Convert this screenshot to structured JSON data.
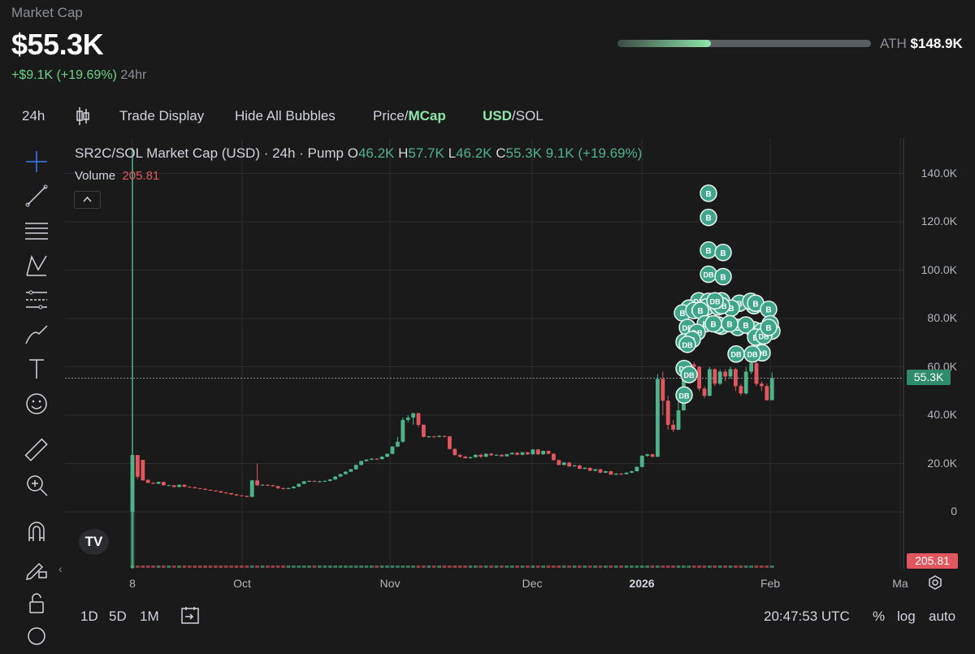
{
  "header": {
    "label": "Market Cap",
    "value": "$55.3K",
    "change": "+$9.1K (+19.69%)",
    "period": "24hr",
    "ath_label": "ATH",
    "ath_value": "$148.9K",
    "ath_progress": 0.37
  },
  "toolbar": {
    "interval": "24h",
    "trade_display": "Trade Display",
    "hide_bubbles": "Hide All Bubbles",
    "price_label": "Price/",
    "mcap_label": "MCap",
    "usd_label": "USD",
    "sol_label": "/SOL"
  },
  "legend": {
    "title": "SR2C/SOL Market Cap (USD) · 24h · Pump",
    "o_key": "O",
    "o_val": "46.2K",
    "h_key": "H",
    "h_val": "57.7K",
    "l_key": "L",
    "l_val": "46.2K",
    "c_key": "C",
    "c_val": "55.3K",
    "change": "9.1K (+19.69%)",
    "volume_label": "Volume",
    "volume_value": "205.81"
  },
  "bottom_bar": {
    "r1": "1D",
    "r2": "5D",
    "r3": "1M",
    "time": "20:47:53 UTC",
    "pct": "%",
    "log": "log",
    "auto": "auto"
  },
  "tools": [
    "crosshair-icon",
    "trend-line-icon",
    "fib-icon",
    "pattern-icon",
    "projection-icon",
    "brush-icon",
    "text-icon",
    "emoji-icon",
    "ruler-icon",
    "zoom-icon",
    "magnet-icon",
    "lock-pencil-icon",
    "lock-icon",
    "eye-icon"
  ],
  "colors": {
    "up": "#4fb38a",
    "down": "#e0575f",
    "accent": "#8fe6a9",
    "bubble": "#3fa58a"
  },
  "chart_data": {
    "type": "candlestick",
    "title": "SR2C/SOL Market Cap (USD) · 24h · Pump",
    "y_ticks": [
      "140.0K",
      "120.0K",
      "100.0K",
      "80.0K",
      "60.0K",
      "40.0K",
      "20.0K",
      "0"
    ],
    "ylim": [
      0,
      140000
    ],
    "x_ticks": [
      "8",
      "Oct",
      "Nov",
      "Dec",
      "2026",
      "Feb",
      "Ma"
    ],
    "last_price_label": "55.3K",
    "last_volume_label": "205.81",
    "candles": [
      [
        0,
        0,
        23500,
        23500,
        0
      ],
      [
        1,
        23500,
        14500,
        23500,
        13500
      ],
      [
        2,
        21500,
        13000,
        21500,
        13000
      ],
      [
        3,
        13200,
        12000,
        13500,
        11800
      ],
      [
        4,
        12000,
        11600,
        12300,
        11400
      ],
      [
        5,
        11600,
        12400,
        12500,
        11500
      ],
      [
        6,
        12400,
        11000,
        12400,
        10800
      ],
      [
        7,
        11000,
        11000,
        11200,
        10800
      ],
      [
        8,
        11000,
        10300,
        11000,
        10000
      ],
      [
        9,
        10300,
        11200,
        11200,
        10100
      ],
      [
        10,
        11200,
        10400,
        11300,
        10200
      ],
      [
        11,
        10400,
        10200,
        10500,
        10000
      ],
      [
        12,
        10200,
        9800,
        10300,
        9600
      ],
      [
        13,
        9800,
        9500,
        9900,
        9400
      ],
      [
        14,
        9500,
        9100,
        9600,
        9000
      ],
      [
        15,
        9100,
        8800,
        9200,
        8700
      ],
      [
        16,
        8800,
        8500,
        8900,
        8400
      ],
      [
        17,
        8500,
        8000,
        8600,
        7800
      ],
      [
        18,
        8000,
        7700,
        8100,
        7500
      ],
      [
        19,
        7700,
        7200,
        7800,
        7000
      ],
      [
        20,
        7200,
        6800,
        7400,
        6600
      ],
      [
        21,
        6800,
        6600,
        6900,
        6400
      ],
      [
        22,
        6600,
        6200,
        6700,
        6000
      ],
      [
        23,
        6200,
        13000,
        13200,
        6000
      ],
      [
        24,
        13000,
        11000,
        20000,
        10600
      ],
      [
        25,
        11000,
        11200,
        11400,
        10800
      ],
      [
        26,
        11200,
        11000,
        11400,
        10600
      ],
      [
        27,
        11000,
        10600,
        11200,
        10400
      ],
      [
        28,
        10600,
        9800,
        10800,
        9500
      ],
      [
        29,
        9800,
        9500,
        10000,
        9300
      ],
      [
        30,
        9500,
        9800,
        10000,
        9400
      ],
      [
        31,
        9800,
        10400,
        10600,
        9600
      ],
      [
        32,
        10400,
        11600,
        11800,
        10200
      ],
      [
        33,
        11600,
        12600,
        12800,
        11400
      ],
      [
        34,
        12600,
        12800,
        13000,
        12400
      ],
      [
        35,
        12800,
        12600,
        13000,
        12400
      ],
      [
        36,
        12600,
        12600,
        12900,
        12300
      ],
      [
        37,
        12600,
        12800,
        13000,
        12500
      ],
      [
        38,
        12800,
        13400,
        13600,
        12600
      ],
      [
        39,
        13400,
        14600,
        14800,
        13200
      ],
      [
        40,
        14600,
        15600,
        15800,
        14400
      ],
      [
        41,
        15600,
        16600,
        16800,
        15400
      ],
      [
        42,
        16600,
        17600,
        17800,
        16400
      ],
      [
        43,
        17600,
        19400,
        19600,
        17400
      ],
      [
        44,
        19400,
        21000,
        21200,
        19200
      ],
      [
        45,
        21000,
        21600,
        21800,
        20800
      ],
      [
        46,
        21600,
        22000,
        22200,
        21400
      ],
      [
        47,
        22000,
        21800,
        22200,
        21400
      ],
      [
        48,
        21800,
        22800,
        23000,
        21600
      ],
      [
        49,
        22800,
        24000,
        24200,
        22600
      ],
      [
        50,
        24000,
        27000,
        27200,
        23800
      ],
      [
        51,
        27000,
        29000,
        31000,
        26800
      ],
      [
        52,
        29000,
        38000,
        39000,
        28600
      ],
      [
        53,
        38000,
        39000,
        40000,
        37000
      ],
      [
        54,
        39000,
        40800,
        41000,
        36000
      ],
      [
        55,
        40800,
        36000,
        41000,
        35000
      ],
      [
        56,
        36000,
        31000,
        36200,
        30800
      ],
      [
        57,
        31000,
        31200,
        31400,
        30600
      ],
      [
        58,
        31200,
        31000,
        31400,
        30800
      ],
      [
        59,
        31000,
        31400,
        31600,
        30800
      ],
      [
        60,
        31400,
        31200,
        31600,
        30800
      ],
      [
        61,
        31200,
        26000,
        31400,
        25800
      ],
      [
        62,
        26000,
        23500,
        26400,
        23200
      ],
      [
        63,
        23500,
        22800,
        24000,
        22400
      ],
      [
        64,
        22800,
        22200,
        23200,
        22000
      ],
      [
        65,
        22200,
        22600,
        22800,
        22000
      ],
      [
        66,
        22600,
        23600,
        23800,
        22400
      ],
      [
        67,
        23600,
        22800,
        24000,
        22400
      ],
      [
        68,
        22800,
        24000,
        24200,
        22600
      ],
      [
        69,
        24000,
        23400,
        24400,
        23200
      ],
      [
        70,
        23400,
        23600,
        23800,
        23200
      ],
      [
        71,
        23600,
        23000,
        23800,
        22800
      ],
      [
        72,
        23000,
        23800,
        24000,
        22800
      ],
      [
        73,
        23800,
        24400,
        24600,
        23600
      ],
      [
        74,
        24400,
        23600,
        24600,
        23400
      ],
      [
        75,
        23600,
        24600,
        24800,
        23400
      ],
      [
        76,
        24600,
        23800,
        24800,
        23600
      ],
      [
        77,
        23800,
        25800,
        26000,
        23600
      ],
      [
        78,
        25800,
        23800,
        26000,
        23600
      ],
      [
        79,
        23800,
        25200,
        25400,
        23600
      ],
      [
        80,
        25200,
        24000,
        25400,
        23800
      ],
      [
        81,
        24000,
        21400,
        24200,
        21200
      ],
      [
        82,
        21400,
        19400,
        21600,
        19200
      ],
      [
        83,
        19400,
        20400,
        20600,
        19200
      ],
      [
        84,
        20400,
        18800,
        20600,
        18600
      ],
      [
        85,
        18800,
        19200,
        19400,
        18600
      ],
      [
        86,
        19200,
        17800,
        19400,
        17600
      ],
      [
        87,
        17800,
        18200,
        18400,
        17600
      ],
      [
        88,
        18200,
        17000,
        18400,
        16800
      ],
      [
        89,
        17000,
        17600,
        17800,
        16800
      ],
      [
        90,
        17600,
        16200,
        17800,
        16000
      ],
      [
        91,
        16200,
        16800,
        17000,
        16000
      ],
      [
        92,
        16800,
        15400,
        17000,
        15200
      ],
      [
        93,
        15400,
        15800,
        16000,
        15200
      ],
      [
        94,
        15800,
        15600,
        16000,
        15200
      ],
      [
        95,
        15600,
        16200,
        16400,
        15400
      ],
      [
        96,
        16200,
        16800,
        17000,
        16000
      ],
      [
        97,
        16800,
        18600,
        18800,
        16600
      ],
      [
        98,
        18600,
        23200,
        23400,
        18400
      ],
      [
        99,
        23200,
        23800,
        24000,
        22800
      ],
      [
        100,
        23800,
        22800,
        24000,
        22400
      ],
      [
        101,
        22800,
        55000,
        57000,
        22600
      ],
      [
        102,
        55000,
        46000,
        58000,
        40000
      ],
      [
        103,
        46000,
        36000,
        48000,
        34000
      ],
      [
        104,
        36000,
        34000,
        38000,
        33000
      ],
      [
        105,
        34000,
        42000,
        46000,
        33800
      ],
      [
        106,
        42000,
        57800,
        60000,
        41800
      ],
      [
        107,
        57800,
        61000,
        62000,
        56000
      ],
      [
        108,
        61000,
        60000,
        62000,
        57000
      ],
      [
        109,
        60000,
        51000,
        60500,
        50000
      ],
      [
        110,
        51000,
        48000,
        52000,
        47000
      ],
      [
        111,
        48000,
        59000,
        60000,
        47800
      ],
      [
        112,
        59000,
        53000,
        59500,
        52000
      ],
      [
        113,
        53000,
        58000,
        59000,
        52500
      ],
      [
        114,
        58000,
        56000,
        59000,
        54000
      ],
      [
        115,
        56000,
        59000,
        60000,
        55000
      ],
      [
        116,
        59000,
        52000,
        59500,
        50000
      ],
      [
        117,
        52000,
        49000,
        53000,
        48000
      ],
      [
        118,
        49000,
        58000,
        60000,
        48500
      ],
      [
        119,
        58000,
        61500,
        63000,
        57000
      ],
      [
        120,
        61500,
        53000,
        62000,
        52000
      ],
      [
        121,
        53000,
        52000,
        54000,
        50000
      ],
      [
        122,
        52000,
        46200,
        53000,
        46000
      ],
      [
        123,
        46200,
        55300,
        57700,
        46200
      ]
    ],
    "bubbles": [
      [
        "B",
        131800
      ],
      [
        "B",
        121800
      ],
      [
        "B",
        108300
      ],
      [
        "B",
        107300
      ],
      [
        "DB",
        98300
      ],
      [
        "B",
        97300
      ],
      [
        "DB",
        87300
      ],
      [
        "B",
        87100
      ],
      [
        "B",
        87300
      ],
      [
        "B",
        86300
      ],
      [
        "B",
        85300
      ],
      [
        "DB",
        84800
      ],
      [
        "DB",
        84800
      ],
      [
        "B",
        84300
      ],
      [
        "B",
        84300
      ],
      [
        "B",
        87100
      ],
      [
        "B",
        86300
      ],
      [
        "B",
        82300
      ],
      [
        "B",
        83800
      ],
      [
        "B",
        83300
      ],
      [
        "B",
        83300
      ],
      [
        "DB",
        76300
      ],
      [
        "B",
        77800
      ],
      [
        "B",
        76800
      ],
      [
        "B",
        76300
      ],
      [
        "DB",
        75300
      ],
      [
        "B",
        74800
      ],
      [
        "B",
        74800
      ],
      [
        "DB",
        74300
      ],
      [
        "B",
        77300
      ],
      [
        "DB",
        77300
      ],
      [
        "B",
        77800
      ],
      [
        "B",
        77800
      ],
      [
        "B",
        70300
      ],
      [
        "B",
        71300
      ],
      [
        "DB",
        69300
      ],
      [
        "B",
        72300
      ],
      [
        "DB",
        72800
      ],
      [
        "DB",
        65800
      ],
      [
        "DB",
        65300
      ],
      [
        "DB",
        65300
      ],
      [
        "DB",
        59300
      ],
      [
        "DB",
        56800
      ],
      [
        "DB",
        48300
      ],
      [
        "B",
        77800
      ],
      [
        "DB",
        85300
      ],
      [
        "DB",
        87300
      ],
      [
        "B",
        76300
      ]
    ]
  }
}
